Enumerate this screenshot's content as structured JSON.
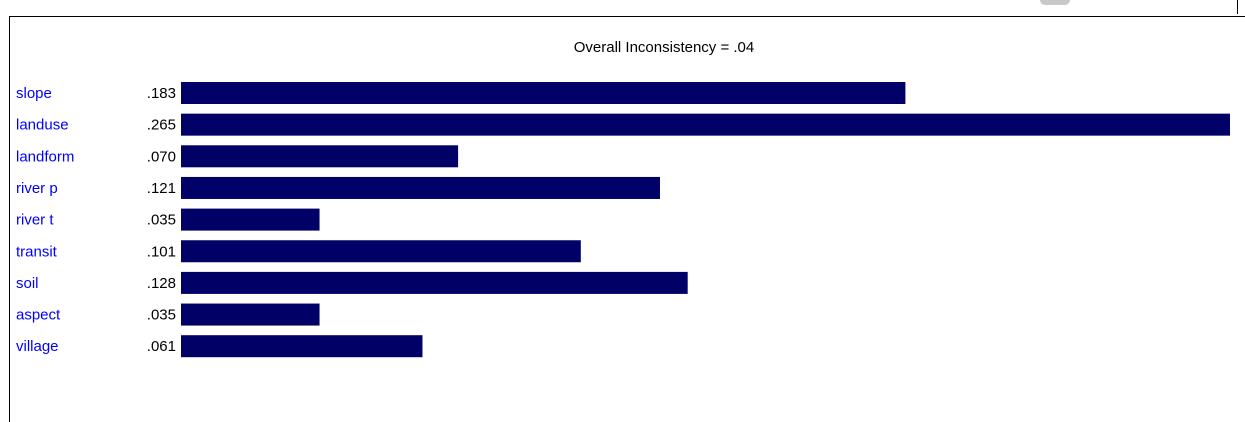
{
  "chart_data": {
    "type": "bar",
    "orientation": "horizontal",
    "title": "Overall Inconsistency = .04",
    "categories": [
      "slope",
      "landuse",
      "landform",
      "river p",
      "river t",
      "transit",
      "soil",
      "aspect",
      "village"
    ],
    "value_labels": [
      ".183",
      ".265",
      ".070",
      ".121",
      ".035",
      ".101",
      ".128",
      ".035",
      ".061"
    ],
    "values": [
      0.183,
      0.265,
      0.07,
      0.121,
      0.035,
      0.101,
      0.128,
      0.035,
      0.061
    ],
    "xlim": [
      0,
      0.265
    ],
    "grid": false,
    "legend": "none",
    "colors": {
      "bar": "#000066",
      "category_label": "#0000ff",
      "value_label": "#000000"
    }
  }
}
